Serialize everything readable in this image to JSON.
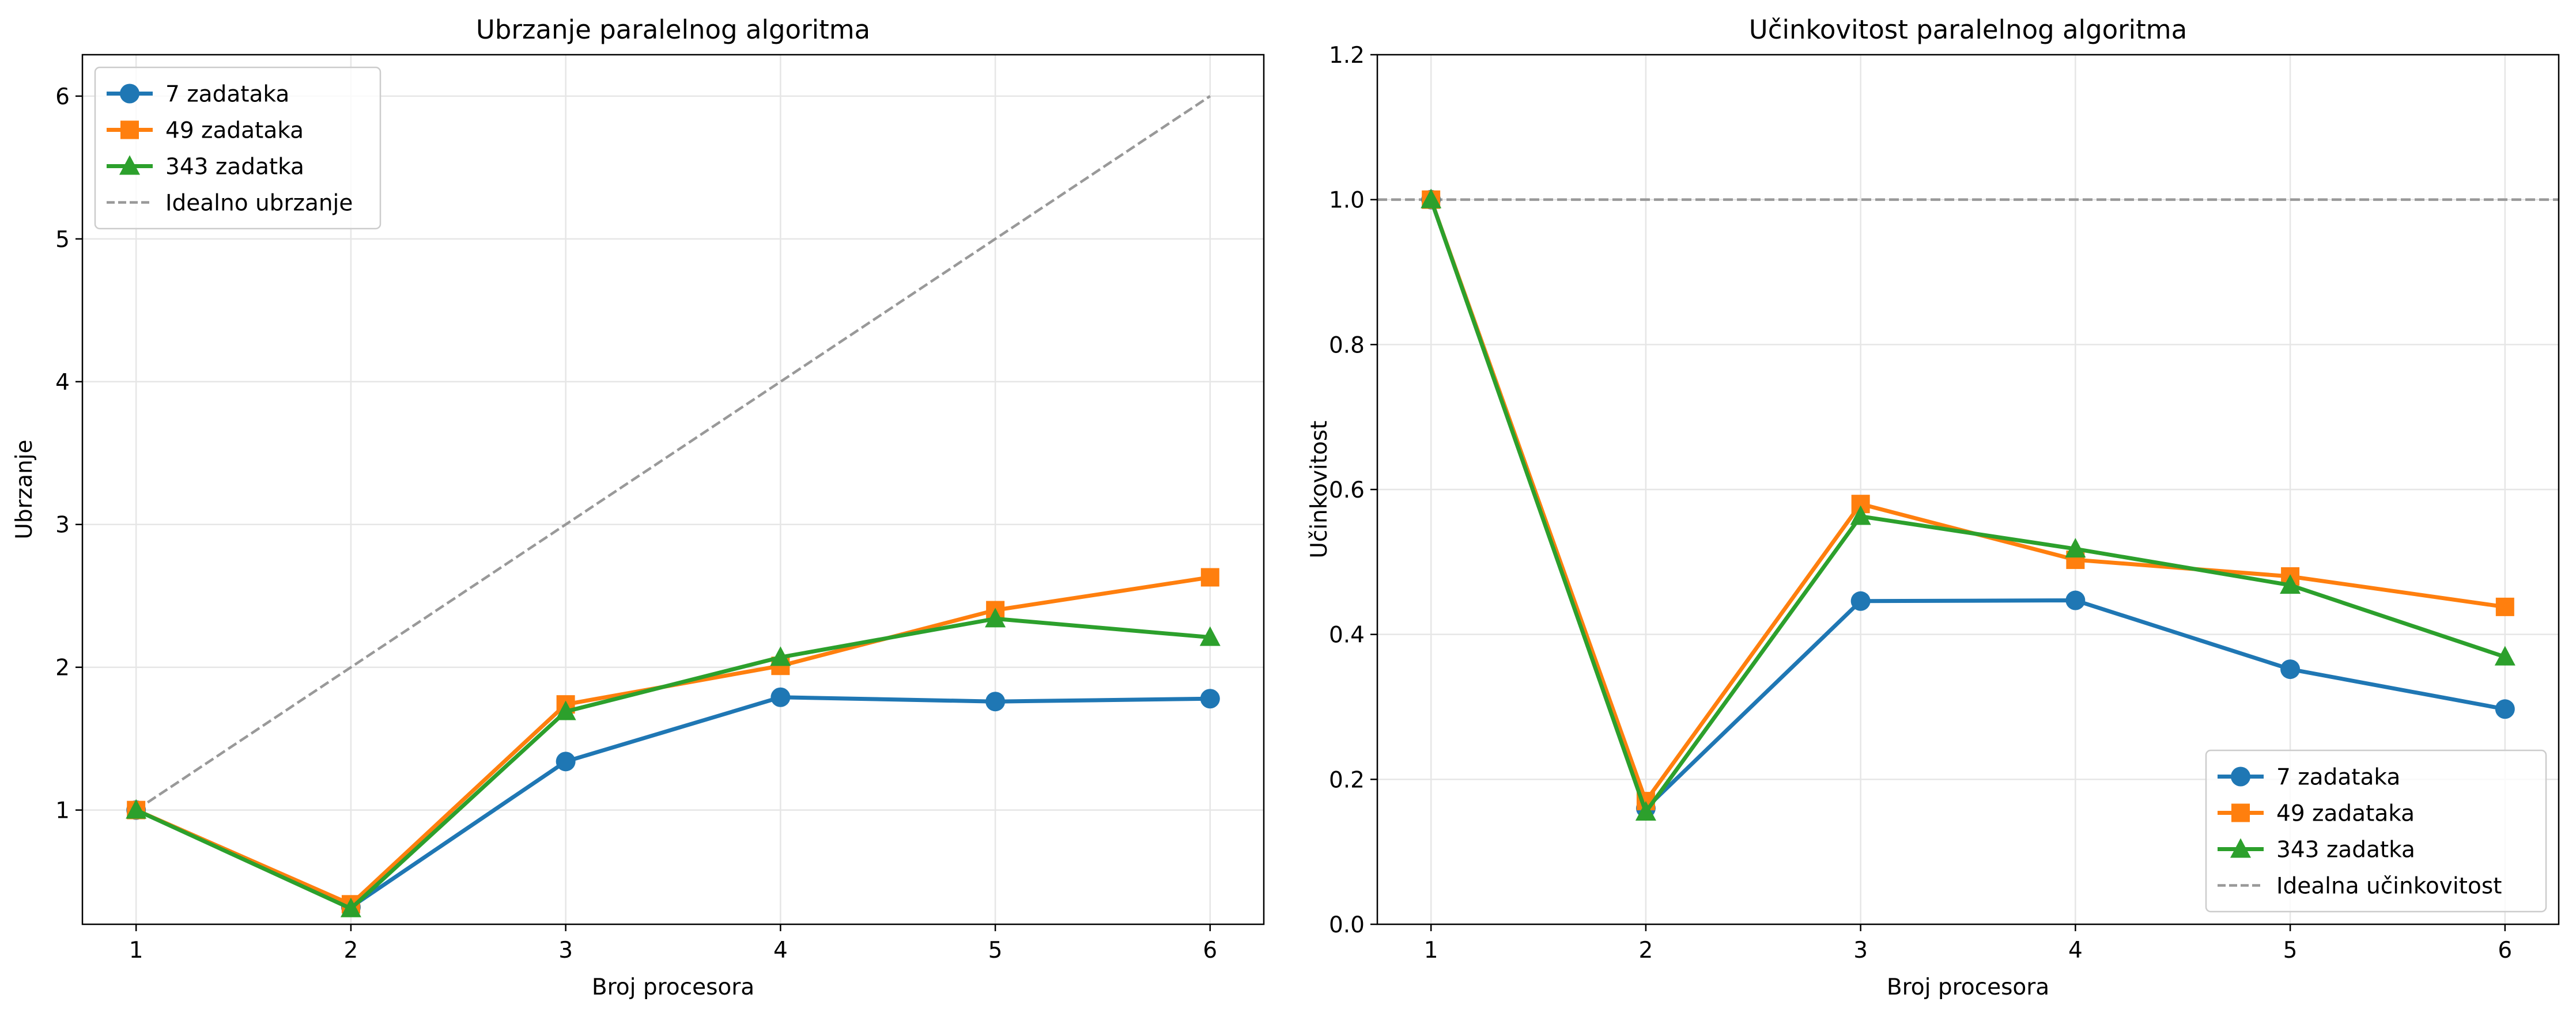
{
  "chart_data": [
    {
      "type": "line",
      "title": "Ubrzanje paralelnog algoritma",
      "xlabel": "Broj procesora",
      "ylabel": "Ubrzanje",
      "x": [
        1,
        2,
        3,
        4,
        5,
        6
      ],
      "xlim": [
        0.75,
        6.25
      ],
      "ylim": [
        0.2,
        6.29
      ],
      "xticks": [
        "1",
        "2",
        "3",
        "4",
        "5",
        "6"
      ],
      "yticks": [
        "1",
        "2",
        "3",
        "4",
        "5",
        "6"
      ],
      "grid": true,
      "legend_position": "upper-left",
      "series": [
        {
          "name": "7 zadataka",
          "values": [
            1.0,
            0.32,
            1.34,
            1.79,
            1.76,
            1.78
          ],
          "color": "#1f77b4",
          "marker": "circle"
        },
        {
          "name": "49 zadataka",
          "values": [
            1.0,
            0.34,
            1.74,
            2.01,
            2.4,
            2.63
          ],
          "color": "#ff7f0e",
          "marker": "square"
        },
        {
          "name": "343 zadatka",
          "values": [
            1.0,
            0.31,
            1.69,
            2.07,
            2.34,
            2.21
          ],
          "color": "#2ca02c",
          "marker": "triangle"
        }
      ],
      "reference": {
        "name": "Idealno ubrzanje",
        "x": [
          1,
          6
        ],
        "values": [
          1,
          6
        ],
        "color": "#999999",
        "style": "dashed"
      }
    },
    {
      "type": "line",
      "title": "Učinkovitost paralelnog algoritma",
      "xlabel": "Broj procesora",
      "ylabel": "Učinkovitost",
      "x": [
        1,
        2,
        3,
        4,
        5,
        6
      ],
      "xlim": [
        0.75,
        6.25
      ],
      "ylim": [
        0.0,
        1.2
      ],
      "xticks": [
        "1",
        "2",
        "3",
        "4",
        "5",
        "6"
      ],
      "yticks": [
        "0.0",
        "0.2",
        "0.4",
        "0.6",
        "0.8",
        "1.0",
        "1.2"
      ],
      "grid": true,
      "legend_position": "lower-right",
      "series": [
        {
          "name": "7 zadataka",
          "values": [
            1.0,
            0.16,
            0.446,
            0.447,
            0.352,
            0.297
          ],
          "color": "#1f77b4",
          "marker": "circle"
        },
        {
          "name": "49 zadataka",
          "values": [
            1.0,
            0.17,
            0.58,
            0.503,
            0.48,
            0.438
          ],
          "color": "#ff7f0e",
          "marker": "square"
        },
        {
          "name": "343 zadatka",
          "values": [
            1.0,
            0.155,
            0.563,
            0.518,
            0.468,
            0.369
          ],
          "color": "#2ca02c",
          "marker": "triangle"
        }
      ],
      "reference": {
        "name": "Idealna učinkovitost",
        "y": 1.0,
        "color": "#999999",
        "style": "dashed"
      }
    }
  ]
}
